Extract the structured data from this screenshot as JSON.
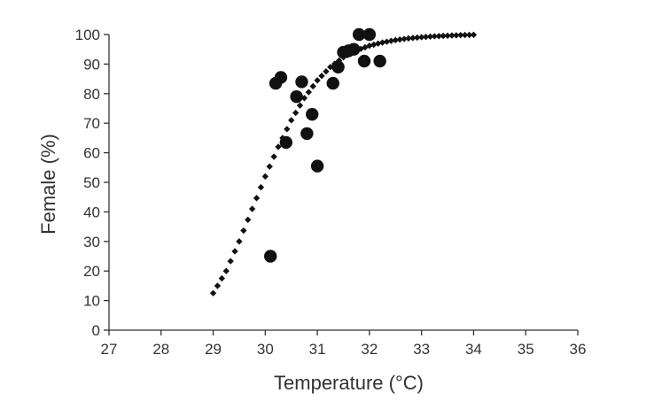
{
  "chart_data": {
    "type": "scatter",
    "title": "",
    "xlabel": "Temperature (°C)",
    "ylabel": "Female (%)",
    "xlim": [
      27,
      36
    ],
    "ylim": [
      0,
      100
    ],
    "x_ticks": [
      27,
      28,
      29,
      30,
      31,
      32,
      33,
      34,
      35,
      36
    ],
    "y_ticks": [
      0,
      10,
      20,
      30,
      40,
      50,
      60,
      70,
      80,
      90,
      100
    ],
    "grid": false,
    "legend": "none",
    "colors": {
      "axis": "#333333",
      "points": "#111111",
      "curve": "#111111"
    },
    "series": [
      {
        "kind": "scatter",
        "points": [
          {
            "x": 30.1,
            "y": 25
          },
          {
            "x": 30.2,
            "y": 83.5
          },
          {
            "x": 30.3,
            "y": 85.5
          },
          {
            "x": 30.4,
            "y": 63.5
          },
          {
            "x": 30.6,
            "y": 79
          },
          {
            "x": 30.7,
            "y": 84
          },
          {
            "x": 30.8,
            "y": 66.5
          },
          {
            "x": 30.9,
            "y": 73
          },
          {
            "x": 31.0,
            "y": 55.5
          },
          {
            "x": 31.3,
            "y": 83.5
          },
          {
            "x": 31.4,
            "y": 89
          },
          {
            "x": 31.5,
            "y": 94
          },
          {
            "x": 31.6,
            "y": 94.5
          },
          {
            "x": 31.7,
            "y": 95
          },
          {
            "x": 31.8,
            "y": 100
          },
          {
            "x": 31.9,
            "y": 91
          },
          {
            "x": 32.0,
            "y": 100
          },
          {
            "x": 32.2,
            "y": 91
          }
        ]
      },
      {
        "kind": "fitted-curve",
        "style": "dotted",
        "points": [
          {
            "x": 29.0,
            "y": 12.5
          },
          {
            "x": 29.25,
            "y": 20
          },
          {
            "x": 29.5,
            "y": 30
          },
          {
            "x": 29.75,
            "y": 41
          },
          {
            "x": 30.0,
            "y": 52
          },
          {
            "x": 30.25,
            "y": 62
          },
          {
            "x": 30.5,
            "y": 71
          },
          {
            "x": 30.75,
            "y": 78.5
          },
          {
            "x": 31.0,
            "y": 84.5
          },
          {
            "x": 31.25,
            "y": 89
          },
          {
            "x": 31.5,
            "y": 92.3
          },
          {
            "x": 31.75,
            "y": 94.6
          },
          {
            "x": 32.0,
            "y": 96.2
          },
          {
            "x": 32.25,
            "y": 97.3
          },
          {
            "x": 32.5,
            "y": 98.1
          },
          {
            "x": 32.75,
            "y": 98.7
          },
          {
            "x": 33.0,
            "y": 99.1
          },
          {
            "x": 33.25,
            "y": 99.4
          },
          {
            "x": 33.5,
            "y": 99.6
          },
          {
            "x": 33.75,
            "y": 99.8
          },
          {
            "x": 34.0,
            "y": 99.9
          }
        ]
      }
    ]
  }
}
